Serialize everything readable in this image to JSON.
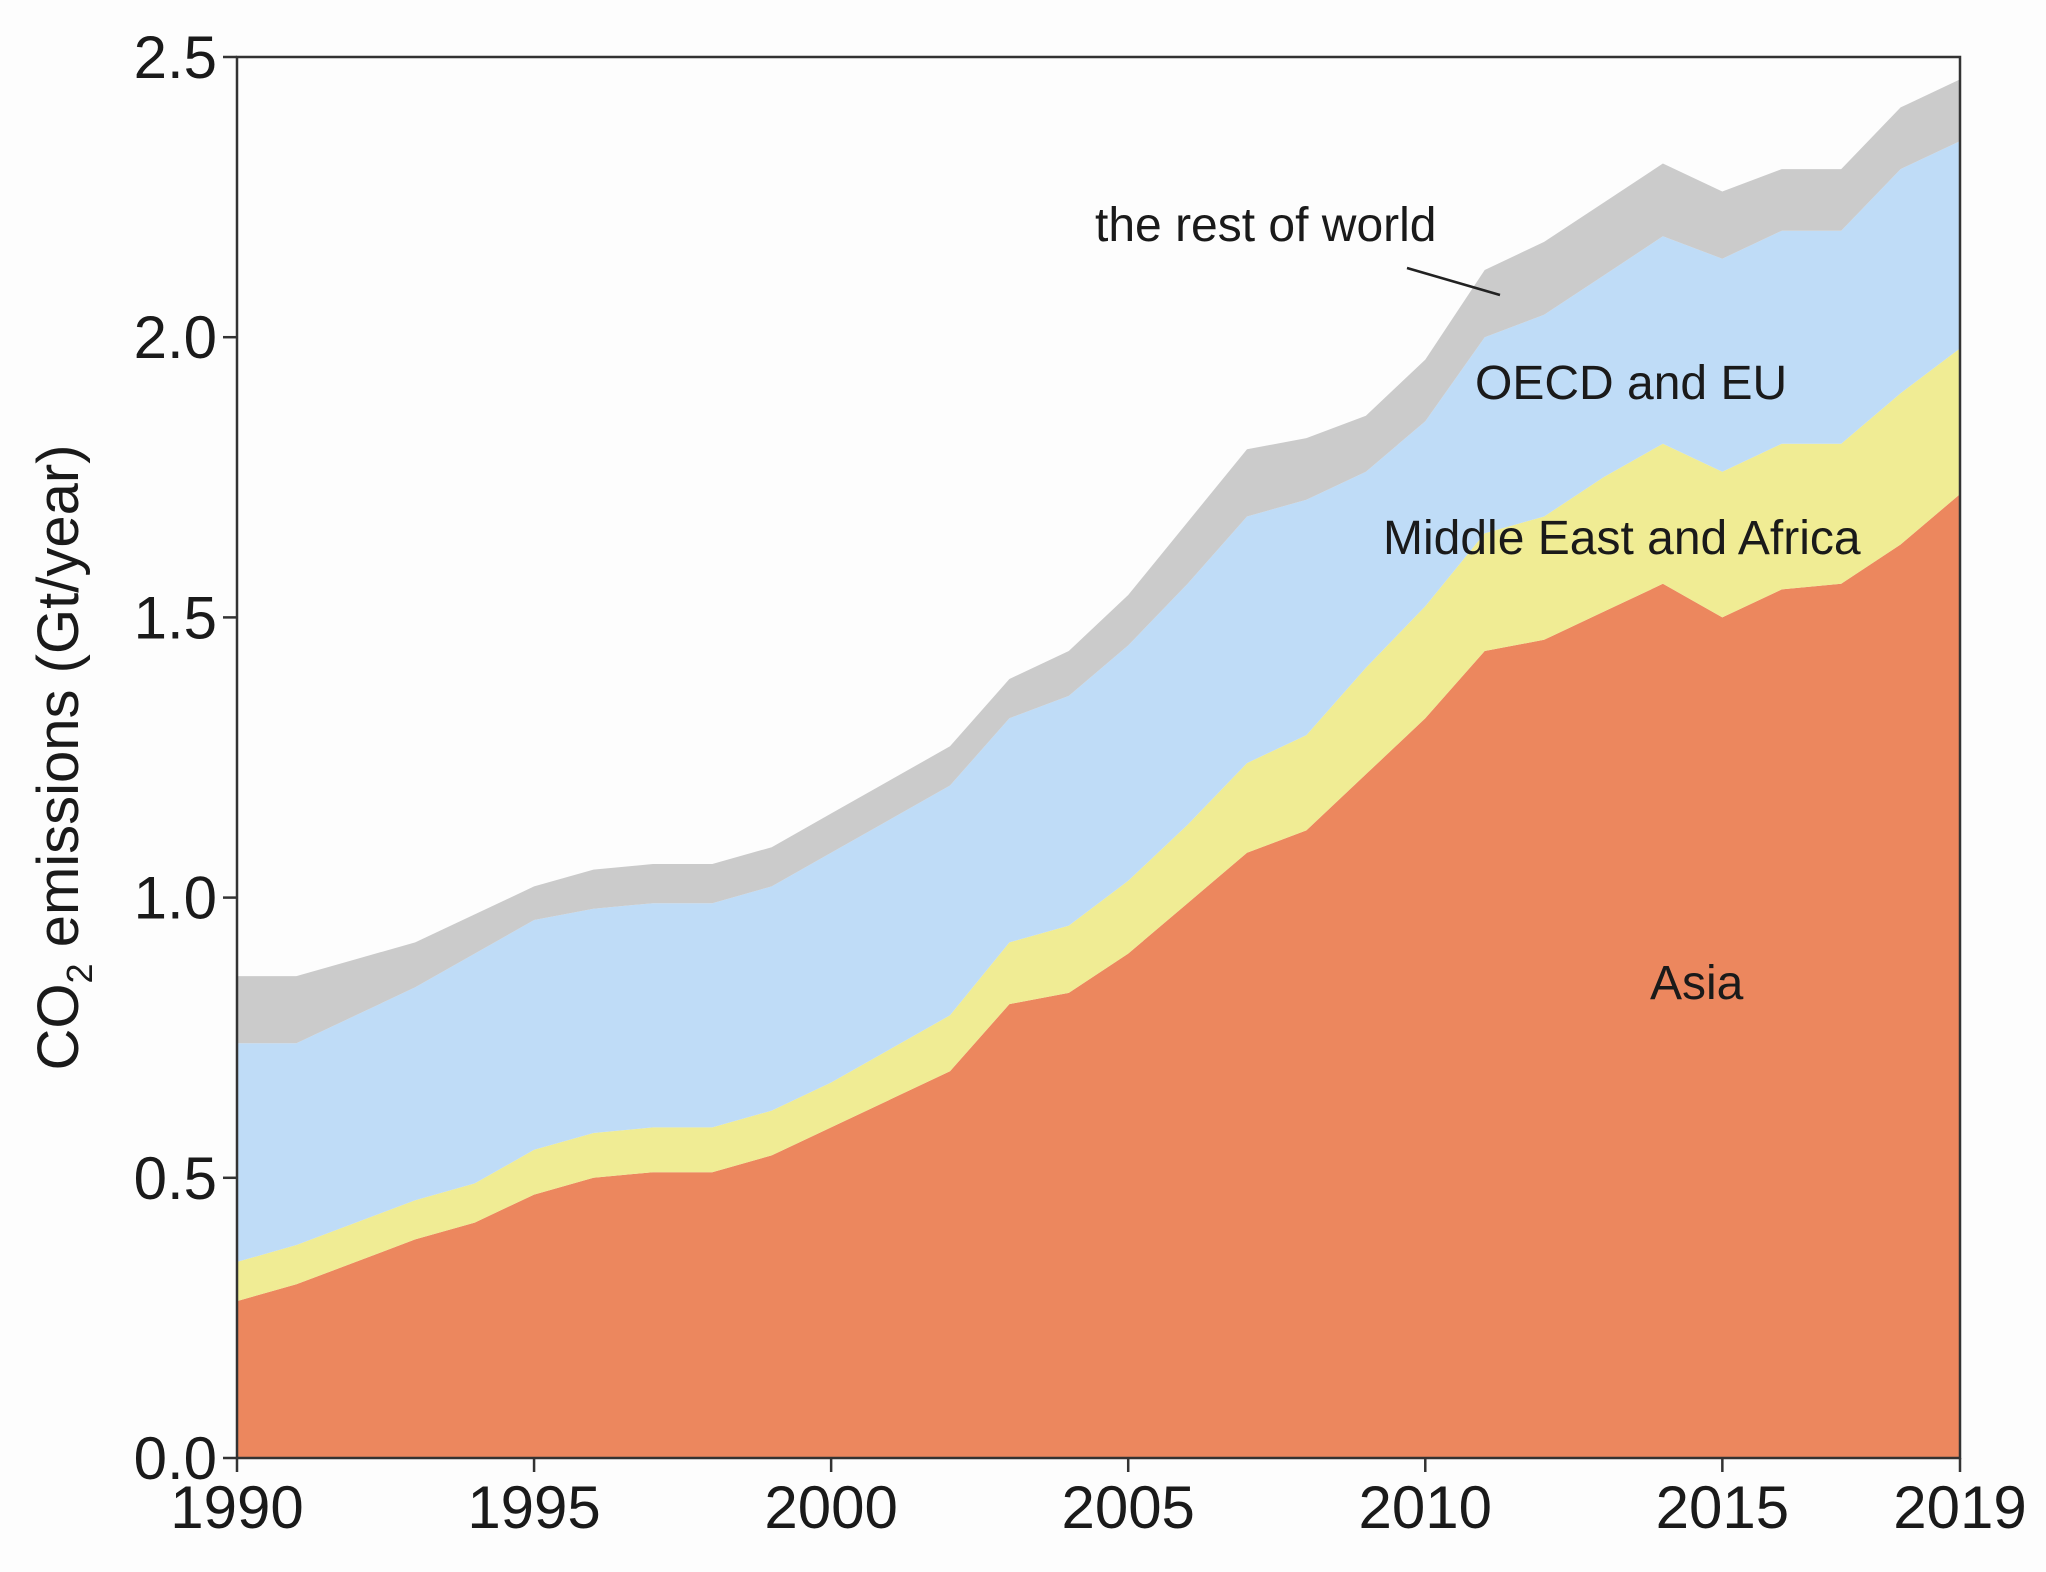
{
  "chart_data": {
    "type": "area",
    "stacked": true,
    "title": "",
    "xlabel": "",
    "ylabel": {
      "prefix": "CO",
      "subscript": "2",
      "suffix": " emissions (Gt/year)"
    },
    "xlim": [
      1990,
      2019
    ],
    "ylim": [
      0,
      2.5
    ],
    "xticks": [
      "1990",
      "1995",
      "2000",
      "2005",
      "2010",
      "2015",
      "2019"
    ],
    "yticks": [
      "0.0",
      "0.5",
      "1.0",
      "1.5",
      "2.0",
      "2.5"
    ],
    "x": [
      1990,
      1991,
      1992,
      1993,
      1994,
      1995,
      1996,
      1997,
      1998,
      1999,
      2000,
      2001,
      2002,
      2003,
      2004,
      2005,
      2006,
      2007,
      2008,
      2009,
      2010,
      2011,
      2012,
      2013,
      2014,
      2015,
      2016,
      2017,
      2018,
      2019
    ],
    "series": [
      {
        "name": "Asia",
        "color": "#ec875e",
        "values": [
          0.28,
          0.31,
          0.35,
          0.39,
          0.42,
          0.47,
          0.5,
          0.51,
          0.51,
          0.54,
          0.59,
          0.64,
          0.69,
          0.81,
          0.83,
          0.9,
          0.99,
          1.08,
          1.12,
          1.22,
          1.32,
          1.44,
          1.46,
          1.51,
          1.56,
          1.5,
          1.55,
          1.56,
          1.63,
          1.72
        ]
      },
      {
        "name": "Middle East and Africa",
        "color": "#f0ec94",
        "values": [
          0.07,
          0.07,
          0.07,
          0.07,
          0.07,
          0.08,
          0.08,
          0.08,
          0.08,
          0.08,
          0.08,
          0.09,
          0.1,
          0.11,
          0.12,
          0.13,
          0.14,
          0.16,
          0.17,
          0.19,
          0.2,
          0.21,
          0.22,
          0.24,
          0.25,
          0.26,
          0.26,
          0.25,
          0.27,
          0.26
        ]
      },
      {
        "name": "OECD and EU",
        "color": "#bfdcf7",
        "values": [
          0.39,
          0.36,
          0.37,
          0.38,
          0.41,
          0.41,
          0.4,
          0.4,
          0.4,
          0.4,
          0.41,
          0.41,
          0.41,
          0.4,
          0.41,
          0.42,
          0.43,
          0.44,
          0.42,
          0.35,
          0.33,
          0.35,
          0.36,
          0.36,
          0.37,
          0.38,
          0.38,
          0.38,
          0.4,
          0.37
        ]
      },
      {
        "name": "the rest of world",
        "color": "#cbcbcb",
        "values": [
          0.12,
          0.12,
          0.1,
          0.08,
          0.07,
          0.06,
          0.07,
          0.07,
          0.07,
          0.07,
          0.07,
          0.07,
          0.07,
          0.07,
          0.08,
          0.09,
          0.11,
          0.12,
          0.11,
          0.1,
          0.11,
          0.12,
          0.13,
          0.13,
          0.13,
          0.12,
          0.11,
          0.11,
          0.11,
          0.11
        ]
      }
    ],
    "annotations": [
      {
        "text": "the rest of world",
        "series": "the rest of world"
      },
      {
        "text": "OECD and EU",
        "series": "OECD and EU"
      },
      {
        "text": "Middle East and Africa",
        "series": "Middle East and Africa"
      },
      {
        "text": "Asia",
        "series": "Asia"
      }
    ]
  }
}
